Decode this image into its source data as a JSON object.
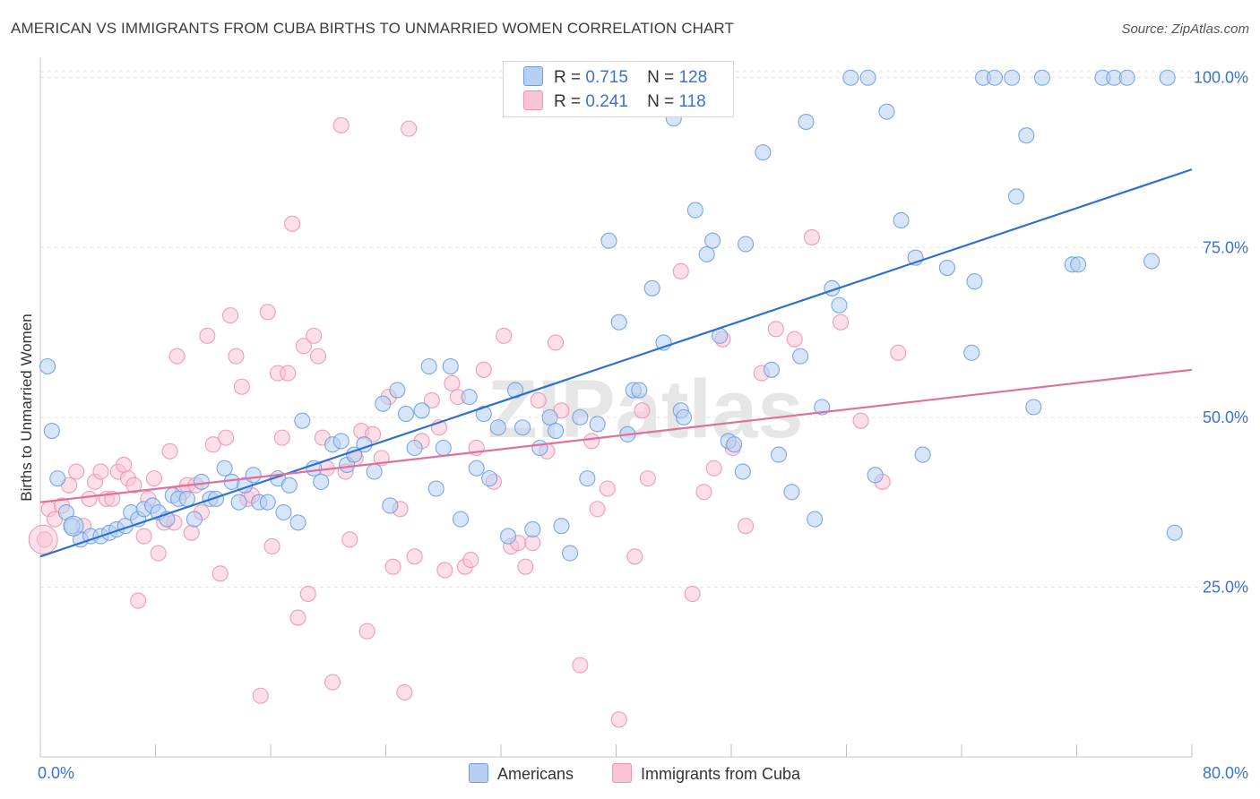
{
  "chart_data": {
    "type": "scatter",
    "title": "AMERICAN VS IMMIGRANTS FROM CUBA BIRTHS TO UNMARRIED WOMEN CORRELATION CHART",
    "source": "Source: ZipAtlas.com",
    "xlabel": "",
    "ylabel": "Births to Unmarried Women",
    "xlim": [
      0,
      80
    ],
    "ylim": [
      0,
      103
    ],
    "x_tick_labels": [
      "0.0%",
      "80.0%"
    ],
    "y_tick_labels": [
      "25.0%",
      "50.0%",
      "75.0%",
      "100.0%"
    ],
    "y_ticks": [
      25,
      50,
      75,
      100
    ],
    "watermark": "ZIPatlas",
    "legend": {
      "blue": {
        "r_label": "R =",
        "r_value": "0.715",
        "n_label": "N =",
        "n_value": "128"
      },
      "pink": {
        "r_label": "R =",
        "r_value": "0.241",
        "n_label": "N =",
        "n_value": "118"
      }
    },
    "series": [
      {
        "name": "Americans",
        "color": "#6f9de3",
        "fill": "#b6cff3",
        "trend": {
          "x0": 0,
          "y0": 29.5,
          "x1": 80,
          "y1": 86.5,
          "color": "#2f6fd1"
        },
        "points": [
          [
            0.5,
            57.5
          ],
          [
            0.8,
            48
          ],
          [
            1.2,
            41
          ],
          [
            1.8,
            36
          ],
          [
            2.2,
            34
          ],
          [
            2.8,
            32
          ],
          [
            3.5,
            32.5
          ],
          [
            4.2,
            32.5
          ],
          [
            4.8,
            33
          ],
          [
            5.3,
            33.5
          ],
          [
            5.9,
            34
          ],
          [
            6.3,
            36
          ],
          [
            6.8,
            35
          ],
          [
            7.2,
            36.5
          ],
          [
            7.8,
            37
          ],
          [
            8.2,
            36
          ],
          [
            8.8,
            35
          ],
          [
            9.2,
            38.5
          ],
          [
            9.6,
            38
          ],
          [
            10.2,
            38
          ],
          [
            10.7,
            35
          ],
          [
            11.2,
            40.5
          ],
          [
            11.8,
            38
          ],
          [
            12.2,
            38
          ],
          [
            12.8,
            42.5
          ],
          [
            13.3,
            40.5
          ],
          [
            13.8,
            37.5
          ],
          [
            14.2,
            40
          ],
          [
            14.8,
            41.5
          ],
          [
            15.2,
            37.5
          ],
          [
            15.8,
            37.5
          ],
          [
            16.5,
            41
          ],
          [
            16.9,
            36
          ],
          [
            17.3,
            40
          ],
          [
            17.9,
            34.5
          ],
          [
            18.2,
            49.5
          ],
          [
            19,
            42.5
          ],
          [
            19.5,
            40.5
          ],
          [
            20.3,
            46
          ],
          [
            20.9,
            46.5
          ],
          [
            21.3,
            43
          ],
          [
            21.8,
            44.5
          ],
          [
            22.5,
            46
          ],
          [
            23.2,
            42
          ],
          [
            23.8,
            52
          ],
          [
            24.3,
            37
          ],
          [
            24.8,
            54
          ],
          [
            25.4,
            50.5
          ],
          [
            26,
            45.5
          ],
          [
            26.5,
            51
          ],
          [
            27,
            57.5
          ],
          [
            27.5,
            39.5
          ],
          [
            28,
            45.5
          ],
          [
            28.5,
            57.5
          ],
          [
            29.2,
            35
          ],
          [
            29.8,
            53
          ],
          [
            30.3,
            42.5
          ],
          [
            30.8,
            50.5
          ],
          [
            31.2,
            41
          ],
          [
            31.8,
            48.5
          ],
          [
            32.5,
            32.5
          ],
          [
            33,
            54
          ],
          [
            33.5,
            48.5
          ],
          [
            34.2,
            33.5
          ],
          [
            34.7,
            45.5
          ],
          [
            35.4,
            50
          ],
          [
            35.8,
            48
          ],
          [
            36.2,
            34
          ],
          [
            36.8,
            30
          ],
          [
            37.5,
            50
          ],
          [
            38,
            41
          ],
          [
            38.7,
            49
          ],
          [
            39.5,
            76
          ],
          [
            40.2,
            64
          ],
          [
            40.8,
            47.5
          ],
          [
            41.2,
            54
          ],
          [
            41.6,
            54
          ],
          [
            42.5,
            69
          ],
          [
            43.3,
            61
          ],
          [
            44,
            94
          ],
          [
            44.5,
            51
          ],
          [
            44.7,
            50
          ],
          [
            45.5,
            80.5
          ],
          [
            46.3,
            74
          ],
          [
            46.7,
            76
          ],
          [
            47.2,
            62
          ],
          [
            47.8,
            46.5
          ],
          [
            48.2,
            46
          ],
          [
            48.8,
            42
          ],
          [
            49,
            75.5
          ],
          [
            50.2,
            89
          ],
          [
            50.8,
            57
          ],
          [
            51.3,
            44.5
          ],
          [
            52.2,
            39
          ],
          [
            52.8,
            59
          ],
          [
            53.2,
            93.5
          ],
          [
            53.8,
            35
          ],
          [
            54.3,
            51.5
          ],
          [
            55,
            69
          ],
          [
            55.5,
            66.5
          ],
          [
            56.3,
            100
          ],
          [
            57.5,
            100
          ],
          [
            58,
            41.5
          ],
          [
            58.8,
            95
          ],
          [
            59.8,
            79
          ],
          [
            60.8,
            73.5
          ],
          [
            61.3,
            44.5
          ],
          [
            63,
            72
          ],
          [
            64.7,
            59.5
          ],
          [
            64.9,
            70
          ],
          [
            65.5,
            100
          ],
          [
            66.3,
            100
          ],
          [
            67.5,
            100
          ],
          [
            67.8,
            82.5
          ],
          [
            68.5,
            91.5
          ],
          [
            69,
            51.5
          ],
          [
            69.6,
            100
          ],
          [
            71.7,
            72.5
          ],
          [
            72.1,
            72.5
          ],
          [
            73.8,
            100
          ],
          [
            74.6,
            100
          ],
          [
            75.5,
            100
          ],
          [
            77.2,
            73
          ],
          [
            78.3,
            100
          ],
          [
            78.8,
            33
          ]
        ]
      },
      {
        "name": "Immigrants from Cuba",
        "color": "#ee92b0",
        "fill": "#f9c4d4",
        "trend": {
          "x0": 0,
          "y0": 37.5,
          "x1": 80,
          "y1": 57,
          "color": "#e0709b"
        },
        "points": [
          [
            0.3,
            32
          ],
          [
            0.6,
            36.5
          ],
          [
            1,
            35
          ],
          [
            1.5,
            37
          ],
          [
            2,
            40
          ],
          [
            2.5,
            42
          ],
          [
            3,
            34
          ],
          [
            3.4,
            38
          ],
          [
            3.8,
            40.5
          ],
          [
            4.2,
            42
          ],
          [
            4.6,
            38
          ],
          [
            5,
            38
          ],
          [
            5.4,
            42
          ],
          [
            5.8,
            43
          ],
          [
            6.1,
            41
          ],
          [
            6.5,
            40
          ],
          [
            6.8,
            23
          ],
          [
            7.2,
            32.5
          ],
          [
            7.5,
            38
          ],
          [
            7.9,
            41
          ],
          [
            8.2,
            30
          ],
          [
            8.6,
            34.5
          ],
          [
            9,
            45
          ],
          [
            9.3,
            34.5
          ],
          [
            9.5,
            59
          ],
          [
            9.9,
            39
          ],
          [
            10.2,
            40
          ],
          [
            10.5,
            33
          ],
          [
            10.8,
            40
          ],
          [
            11.2,
            36
          ],
          [
            11.6,
            62
          ],
          [
            12,
            46
          ],
          [
            12.5,
            27
          ],
          [
            12.9,
            47
          ],
          [
            13.2,
            65
          ],
          [
            13.6,
            59
          ],
          [
            14,
            54.5
          ],
          [
            14.4,
            38
          ],
          [
            14.7,
            38.5
          ],
          [
            15.3,
            9
          ],
          [
            15.8,
            65.5
          ],
          [
            16.1,
            31
          ],
          [
            16.5,
            56.5
          ],
          [
            16.8,
            47
          ],
          [
            17.2,
            56.5
          ],
          [
            17.5,
            78.5
          ],
          [
            17.9,
            20.5
          ],
          [
            18.3,
            60.5
          ],
          [
            18.6,
            24
          ],
          [
            19,
            62
          ],
          [
            19.3,
            59
          ],
          [
            19.6,
            47
          ],
          [
            19.9,
            42.5
          ],
          [
            20.3,
            11
          ],
          [
            20.9,
            93
          ],
          [
            21.2,
            42
          ],
          [
            21.5,
            32
          ],
          [
            21.9,
            44
          ],
          [
            22.3,
            48
          ],
          [
            22.7,
            18.5
          ],
          [
            23.1,
            47.5
          ],
          [
            23.7,
            44
          ],
          [
            24.2,
            53
          ],
          [
            24.5,
            28
          ],
          [
            25,
            36.5
          ],
          [
            25.3,
            9.5
          ],
          [
            25.6,
            92.5
          ],
          [
            26,
            29.5
          ],
          [
            26.5,
            46.5
          ],
          [
            27.2,
            52.5
          ],
          [
            27.7,
            48.5
          ],
          [
            28.1,
            27.5
          ],
          [
            28.6,
            55
          ],
          [
            29,
            53
          ],
          [
            29.5,
            28
          ],
          [
            29.9,
            29
          ],
          [
            30.3,
            45.5
          ],
          [
            30.8,
            57
          ],
          [
            31.5,
            40.5
          ],
          [
            32.2,
            62
          ],
          [
            32.7,
            31
          ],
          [
            33.2,
            31.5
          ],
          [
            33.7,
            28
          ],
          [
            34.2,
            31.5
          ],
          [
            34.6,
            52.5
          ],
          [
            35.2,
            45
          ],
          [
            35.8,
            61
          ],
          [
            36.2,
            51
          ],
          [
            37.5,
            13.5
          ],
          [
            38.3,
            46.5
          ],
          [
            38.7,
            36.5
          ],
          [
            39.4,
            39.5
          ],
          [
            40.2,
            5.5
          ],
          [
            41.3,
            29.5
          ],
          [
            41.8,
            51
          ],
          [
            42.2,
            41
          ],
          [
            44.5,
            71.5
          ],
          [
            45.3,
            24
          ],
          [
            46.1,
            39
          ],
          [
            46.8,
            42.5
          ],
          [
            47.4,
            61.5
          ],
          [
            48.1,
            45.5
          ],
          [
            49,
            34
          ],
          [
            50.1,
            56.5
          ],
          [
            51.1,
            63
          ],
          [
            52.4,
            61.5
          ],
          [
            53.6,
            76.5
          ],
          [
            55.6,
            64
          ],
          [
            57,
            49.5
          ],
          [
            58.5,
            40.5
          ],
          [
            59.6,
            59.5
          ]
        ]
      }
    ]
  }
}
